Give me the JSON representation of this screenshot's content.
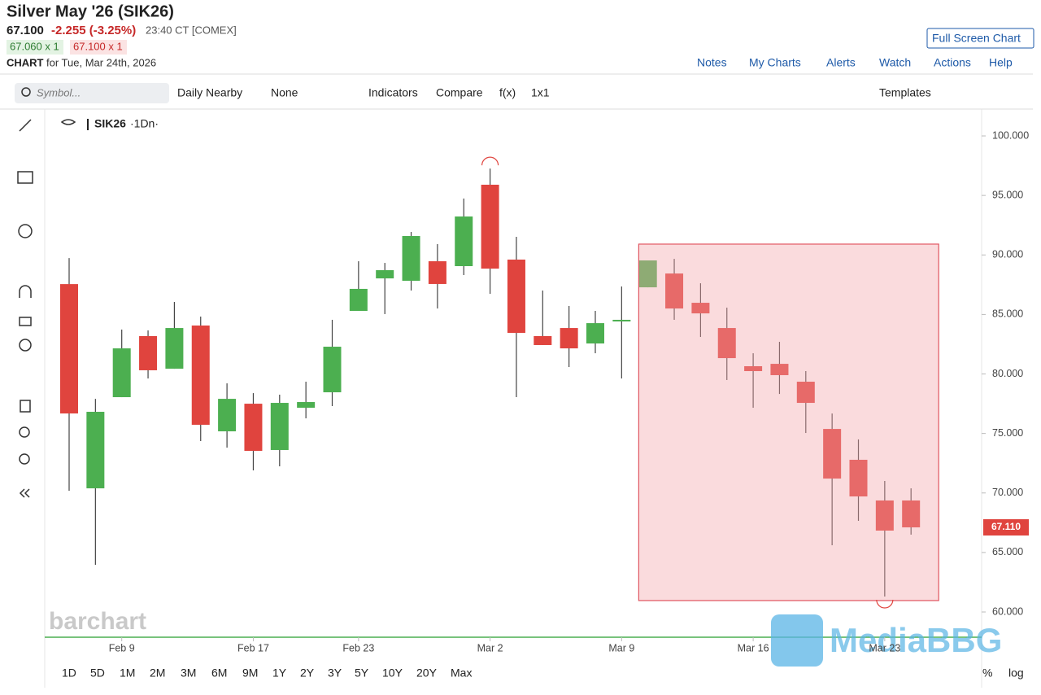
{
  "ui": {
    "header": {
      "title": "Silver May '26 (SIK26)",
      "last": "67.100",
      "change": "-2.255 (-3.25%)",
      "time": "23:40 CT [COMEX]",
      "bid": "67.060 x 1",
      "ask": "67.100 x 1",
      "chart_label": "CHART",
      "date": "for Tue, Mar 24th, 2026"
    },
    "full_screen": "Full Screen Chart",
    "nav": [
      "Notes",
      "My Charts",
      "Alerts",
      "Watch",
      "Actions",
      "Help"
    ],
    "toolbar": {
      "symbol_placeholder": "Symbol...",
      "items": [
        "Daily Nearby",
        "None",
        "Indicators",
        "Compare",
        "f(x)",
        "1x1"
      ],
      "templates": "Templates"
    },
    "legend": {
      "symbol": "SIK26",
      "interval": "·1Dn·"
    },
    "ranges": [
      "1D",
      "5D",
      "1M",
      "2M",
      "3M",
      "6M",
      "9M",
      "1Y",
      "2Y",
      "3Y",
      "5Y",
      "10Y",
      "20Y",
      "Max"
    ],
    "scale_options": [
      "%",
      "log"
    ],
    "watermarks": [
      "barchart",
      "MediaBBG"
    ]
  },
  "chart_data": {
    "type": "candlestick",
    "categories": [
      null,
      null,
      "Feb 9",
      null,
      null,
      null,
      null,
      "Feb 17",
      null,
      null,
      null,
      "Feb 23",
      null,
      null,
      null,
      null,
      "Mar 2",
      null,
      null,
      null,
      null,
      "Mar 9",
      null,
      null,
      null,
      null,
      "Mar 16",
      null,
      null,
      null,
      null,
      "Mar 23",
      null
    ],
    "open": [
      87.55,
      70.39,
      78.05,
      83.18,
      80.44,
      84.07,
      75.18,
      77.5,
      73.61,
      77.16,
      78.46,
      85.3,
      88.03,
      87.83,
      89.47,
      89.06,
      95.9,
      89.61,
      83.18,
      83.86,
      82.56,
      84.48,
      87.28,
      88.44,
      85.98,
      83.86,
      80.65,
      80.85,
      79.35,
      75.38,
      72.79,
      69.37,
      69.37
    ],
    "high": [
      89.74,
      77.91,
      83.73,
      83.66,
      86.05,
      84.82,
      79.21,
      78.39,
      78.26,
      79.35,
      84.55,
      89.47,
      89.33,
      91.93,
      90.91,
      94.74,
      97.26,
      91.52,
      87.01,
      85.71,
      85.3,
      87.35,
      89.54,
      89.67,
      87.62,
      85.57,
      81.74,
      82.7,
      80.24,
      76.68,
      74.5,
      71.01,
      70.39
    ],
    "low": [
      70.19,
      63.97,
      78.05,
      79.62,
      80.44,
      74.36,
      73.81,
      71.9,
      72.24,
      76.27,
      77.3,
      85.3,
      85.03,
      87.01,
      85.5,
      88.31,
      86.74,
      78.05,
      82.43,
      80.58,
      81.74,
      79.62,
      87.28,
      84.55,
      83.11,
      79.49,
      77.16,
      78.32,
      75.04,
      65.61,
      67.66,
      61.3,
      66.5
    ],
    "close": [
      76.68,
      76.82,
      82.15,
      80.31,
      83.86,
      75.73,
      77.91,
      73.54,
      77.57,
      77.64,
      82.29,
      87.15,
      88.72,
      91.59,
      87.56,
      93.23,
      88.85,
      83.45,
      82.43,
      82.15,
      84.27,
      84.55,
      89.54,
      85.5,
      85.09,
      81.33,
      80.24,
      79.9,
      77.57,
      71.21,
      69.71,
      66.84,
      67.11
    ],
    "up_color": "#4caf50",
    "down_color": "#e0443e",
    "ylim": [
      57.88,
      102.19
    ],
    "yticks": [
      {
        "value": 60,
        "label": "60.000"
      },
      {
        "value": 65,
        "label": "65.000"
      },
      {
        "value": 70,
        "label": "70.000"
      },
      {
        "value": 75,
        "label": "75.000"
      },
      {
        "value": 80,
        "label": "80.000"
      },
      {
        "value": 85,
        "label": "85.000"
      },
      {
        "value": 90,
        "label": "90.000"
      },
      {
        "value": 95,
        "label": "95.000"
      },
      {
        "value": 100,
        "label": "100.000"
      }
    ],
    "last_price": {
      "value": 67.11,
      "label": "67.110"
    },
    "highlight_box": {
      "top": 90.91,
      "bottom": 60.96,
      "color": "#f3a6ab"
    }
  }
}
